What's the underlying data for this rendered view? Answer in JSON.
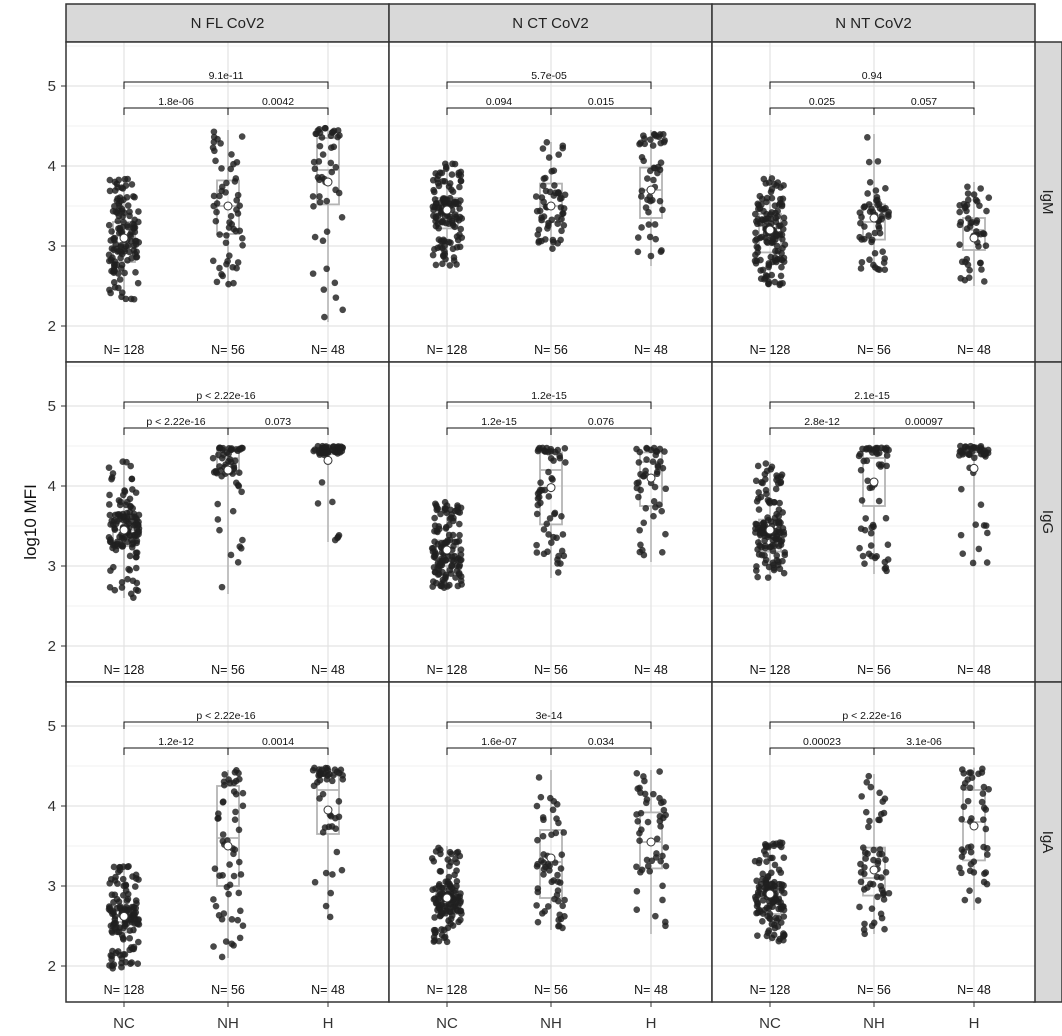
{
  "chart_data": {
    "type": "box-scatter",
    "ylabel": "log10 MFI",
    "ylim": [
      1.55,
      5.55
    ],
    "yticks": [
      2,
      3,
      4,
      5
    ],
    "categories": [
      "NC",
      "NH",
      "H"
    ],
    "columns": [
      "N FL CoV2",
      "N CT CoV2",
      "N NT CoV2"
    ],
    "rows": [
      "IgM",
      "IgG",
      "IgA"
    ],
    "sample_size_labels": [
      "N= 128",
      "N= 56",
      "N= 48"
    ],
    "sample_sizes": [
      128,
      56,
      48
    ],
    "grid": true,
    "panels": [
      {
        "row": "IgM",
        "column": "N FL CoV2",
        "boxes": [
          {
            "q1": 2.8,
            "median": 3.0,
            "q3": 3.3,
            "lo": 2.3,
            "hi": 3.85,
            "mean": 3.1
          },
          {
            "q1": 3.15,
            "median": 3.5,
            "q3": 3.82,
            "lo": 2.5,
            "hi": 4.45,
            "mean": 3.5
          },
          {
            "q1": 3.52,
            "median": 3.95,
            "q3": 4.35,
            "lo": 2.05,
            "hi": 4.48,
            "mean": 3.8
          }
        ],
        "comparisons": [
          {
            "label": "1.8e-06",
            "from": "NC",
            "to": "NH"
          },
          {
            "label": "0.0042",
            "from": "NH",
            "to": "H"
          },
          {
            "label": "9.1e-11",
            "from": "NC",
            "to": "H"
          }
        ]
      },
      {
        "row": "IgM",
        "column": "N CT CoV2",
        "boxes": [
          {
            "q1": 3.22,
            "median": 3.4,
            "q3": 3.6,
            "lo": 2.75,
            "hi": 4.05,
            "mean": 3.45
          },
          {
            "q1": 3.3,
            "median": 3.5,
            "q3": 3.78,
            "lo": 2.95,
            "hi": 4.3,
            "mean": 3.5
          },
          {
            "q1": 3.35,
            "median": 3.7,
            "q3": 3.98,
            "lo": 2.75,
            "hi": 4.45,
            "mean": 3.7
          }
        ],
        "comparisons": [
          {
            "label": "0.094",
            "from": "NC",
            "to": "NH"
          },
          {
            "label": "0.015",
            "from": "NH",
            "to": "H"
          },
          {
            "label": "5.7e-05",
            "from": "NC",
            "to": "H"
          }
        ]
      },
      {
        "row": "IgM",
        "column": "N NT CoV2",
        "boxes": [
          {
            "q1": 2.92,
            "median": 3.1,
            "q3": 3.4,
            "lo": 2.5,
            "hi": 3.9,
            "mean": 3.2
          },
          {
            "q1": 3.08,
            "median": 3.3,
            "q3": 3.52,
            "lo": 2.7,
            "hi": 4.4,
            "mean": 3.35
          },
          {
            "q1": 2.95,
            "median": 3.2,
            "q3": 3.35,
            "lo": 2.5,
            "hi": 3.8,
            "mean": 3.1
          }
        ],
        "comparisons": [
          {
            "label": "0.025",
            "from": "NC",
            "to": "NH"
          },
          {
            "label": "0.057",
            "from": "NH",
            "to": "H"
          },
          {
            "label": "0.94",
            "from": "NC",
            "to": "H"
          }
        ]
      },
      {
        "row": "IgG",
        "column": "N FL CoV2",
        "boxes": [
          {
            "q1": 3.25,
            "median": 3.45,
            "q3": 3.65,
            "lo": 2.6,
            "hi": 4.35,
            "mean": 3.45
          },
          {
            "q1": 4.15,
            "median": 4.35,
            "q3": 4.45,
            "lo": 2.65,
            "hi": 4.48,
            "mean": 4.2
          },
          {
            "q1": 4.4,
            "median": 4.42,
            "q3": 4.48,
            "lo": 3.3,
            "hi": 4.5,
            "mean": 4.32
          }
        ],
        "comparisons": [
          {
            "label": "p < 2.22e-16",
            "from": "NC",
            "to": "NH"
          },
          {
            "label": "0.073",
            "from": "NH",
            "to": "H"
          },
          {
            "label": "p < 2.22e-16",
            "from": "NC",
            "to": "H"
          }
        ]
      },
      {
        "row": "IgG",
        "column": "N CT CoV2",
        "boxes": [
          {
            "q1": 3.0,
            "median": 3.15,
            "q3": 3.32,
            "lo": 2.72,
            "hi": 3.8,
            "mean": 3.2
          },
          {
            "q1": 3.52,
            "median": 4.2,
            "q3": 4.42,
            "lo": 2.85,
            "hi": 4.48,
            "mean": 3.98
          },
          {
            "q1": 3.75,
            "median": 4.3,
            "q3": 4.42,
            "lo": 3.05,
            "hi": 4.48,
            "mean": 4.1
          }
        ],
        "comparisons": [
          {
            "label": "1.2e-15",
            "from": "NC",
            "to": "NH"
          },
          {
            "label": "0.076",
            "from": "NH",
            "to": "H"
          },
          {
            "label": "1.2e-15",
            "from": "NC",
            "to": "H"
          }
        ]
      },
      {
        "row": "IgG",
        "column": "N NT CoV2",
        "boxes": [
          {
            "q1": 3.18,
            "median": 3.35,
            "q3": 3.58,
            "lo": 2.85,
            "hi": 4.3,
            "mean": 3.45
          },
          {
            "q1": 3.75,
            "median": 4.35,
            "q3": 4.45,
            "lo": 2.9,
            "hi": 4.48,
            "mean": 4.05
          },
          {
            "q1": 4.38,
            "median": 4.42,
            "q3": 4.48,
            "lo": 3.0,
            "hi": 4.5,
            "mean": 4.22
          }
        ],
        "comparisons": [
          {
            "label": "2.8e-12",
            "from": "NC",
            "to": "NH"
          },
          {
            "label": "0.00097",
            "from": "NH",
            "to": "H"
          },
          {
            "label": "2.1e-15",
            "from": "NC",
            "to": "H"
          }
        ]
      },
      {
        "row": "IgA",
        "column": "N FL CoV2",
        "boxes": [
          {
            "q1": 2.42,
            "median": 2.55,
            "q3": 2.75,
            "lo": 1.95,
            "hi": 3.25,
            "mean": 2.62
          },
          {
            "q1": 3.0,
            "median": 3.6,
            "q3": 4.25,
            "lo": 2.1,
            "hi": 4.45,
            "mean": 3.5
          },
          {
            "q1": 3.65,
            "median": 4.2,
            "q3": 4.38,
            "lo": 2.6,
            "hi": 4.48,
            "mean": 3.95
          }
        ],
        "comparisons": [
          {
            "label": "1.2e-12",
            "from": "NC",
            "to": "NH"
          },
          {
            "label": "0.0014",
            "from": "NH",
            "to": "H"
          },
          {
            "label": "p < 2.22e-16",
            "from": "NC",
            "to": "H"
          }
        ]
      },
      {
        "row": "IgA",
        "column": "N CT CoV2",
        "boxes": [
          {
            "q1": 2.65,
            "median": 2.78,
            "q3": 3.0,
            "lo": 2.3,
            "hi": 3.5,
            "mean": 2.85
          },
          {
            "q1": 2.85,
            "median": 3.3,
            "q3": 3.7,
            "lo": 2.45,
            "hi": 4.45,
            "mean": 3.35
          },
          {
            "q1": 3.22,
            "median": 3.55,
            "q3": 3.92,
            "lo": 2.4,
            "hi": 4.45,
            "mean": 3.55
          }
        ],
        "comparisons": [
          {
            "label": "1.6e-07",
            "from": "NC",
            "to": "NH"
          },
          {
            "label": "0.034",
            "from": "NH",
            "to": "H"
          },
          {
            "label": "3e-14",
            "from": "NC",
            "to": "H"
          }
        ]
      },
      {
        "row": "IgA",
        "column": "N NT CoV2",
        "boxes": [
          {
            "q1": 2.65,
            "median": 2.85,
            "q3": 3.05,
            "lo": 2.3,
            "hi": 3.55,
            "mean": 2.9
          },
          {
            "q1": 2.88,
            "median": 3.1,
            "q3": 3.48,
            "lo": 2.4,
            "hi": 4.4,
            "mean": 3.2
          },
          {
            "q1": 3.32,
            "median": 3.8,
            "q3": 4.2,
            "lo": 2.7,
            "hi": 4.48,
            "mean": 3.75
          }
        ],
        "comparisons": [
          {
            "label": "0.00023",
            "from": "NC",
            "to": "NH"
          },
          {
            "label": "3.1e-06",
            "from": "NH",
            "to": "H"
          },
          {
            "label": "p < 2.22e-16",
            "from": "NC",
            "to": "H"
          }
        ]
      }
    ]
  },
  "colors": {
    "panel_background": "#ffffff",
    "strip_background": "#d9d9d9",
    "panel_border": "#333333",
    "grid_major": "#e3e3e3",
    "grid_minor": "#f1f1f1",
    "box_outline": "#b5b5b5",
    "points": "#202020",
    "mean_marker_fill": "#ffffff"
  }
}
